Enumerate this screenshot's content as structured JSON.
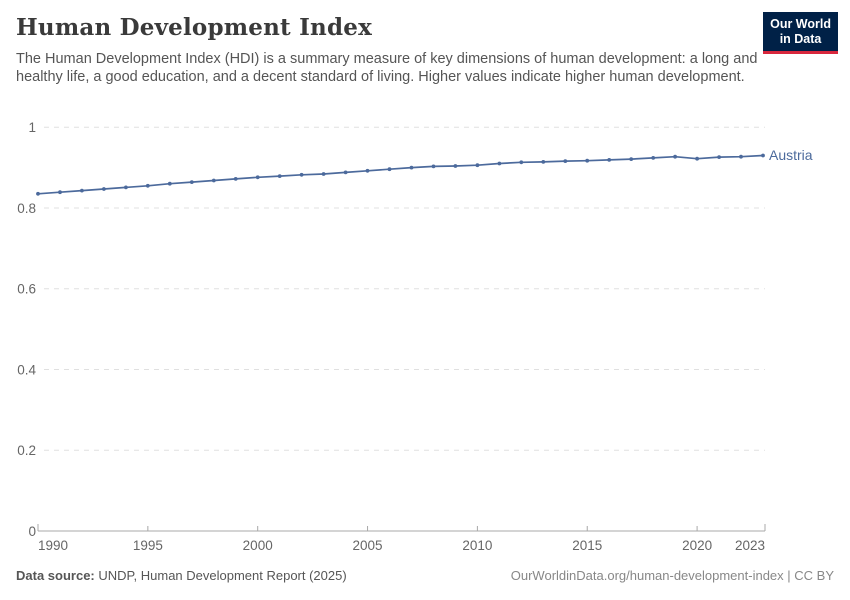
{
  "header": {
    "title": "Human Development Index",
    "subtitle": "The Human Development Index (HDI) is a summary measure of key dimensions of human development: a long and healthy life, a good education, and a decent standard of living. Higher values indicate higher human development.",
    "logo": {
      "line1": "Our World",
      "line2": "in Data",
      "bg_color": "#002147",
      "accent_color": "#d8273d"
    }
  },
  "chart_data": {
    "type": "line",
    "title": "Human Development Index",
    "x_years": [
      1990,
      1991,
      1992,
      1993,
      1994,
      1995,
      1996,
      1997,
      1998,
      1999,
      2000,
      2001,
      2002,
      2003,
      2004,
      2005,
      2006,
      2007,
      2008,
      2009,
      2010,
      2011,
      2012,
      2013,
      2014,
      2015,
      2016,
      2017,
      2018,
      2019,
      2020,
      2021,
      2022,
      2023
    ],
    "series": [
      {
        "name": "Austria",
        "color": "#4c6a9c",
        "values": [
          0.835,
          0.839,
          0.843,
          0.847,
          0.851,
          0.855,
          0.86,
          0.864,
          0.868,
          0.872,
          0.876,
          0.879,
          0.882,
          0.884,
          0.888,
          0.892,
          0.896,
          0.9,
          0.903,
          0.904,
          0.906,
          0.91,
          0.913,
          0.914,
          0.916,
          0.917,
          0.919,
          0.921,
          0.924,
          0.927,
          0.922,
          0.926,
          0.927,
          0.93
        ]
      }
    ],
    "xlabel": "",
    "ylabel": "",
    "xlim": [
      1990,
      2023
    ],
    "ylim": [
      0,
      1
    ],
    "xticks": [
      1990,
      1995,
      2000,
      2005,
      2010,
      2015,
      2020,
      2023
    ],
    "xtick_labels": [
      "1990",
      "1995",
      "2000",
      "2005",
      "2010",
      "2015",
      "2020",
      "2023"
    ],
    "yticks": [
      0,
      0.2,
      0.4,
      0.6,
      0.8,
      1
    ],
    "ytick_labels": [
      "0",
      "0.2",
      "0.4",
      "0.6",
      "0.8",
      "1"
    ],
    "grid": "horizontal-dashed",
    "legend_position": "end-of-line-label",
    "entity_label": "Austria"
  },
  "footer": {
    "source_label": "Data source:",
    "source_text": " UNDP, Human Development Report (2025)",
    "link_text": "OurWorldinData.org/human-development-index | CC BY"
  },
  "colors": {
    "line": "#4c6a9c",
    "grid": "#e0e0e0",
    "axis": "#a8a8a8",
    "tick_text": "#666666",
    "title_text": "#3a3a3a"
  }
}
